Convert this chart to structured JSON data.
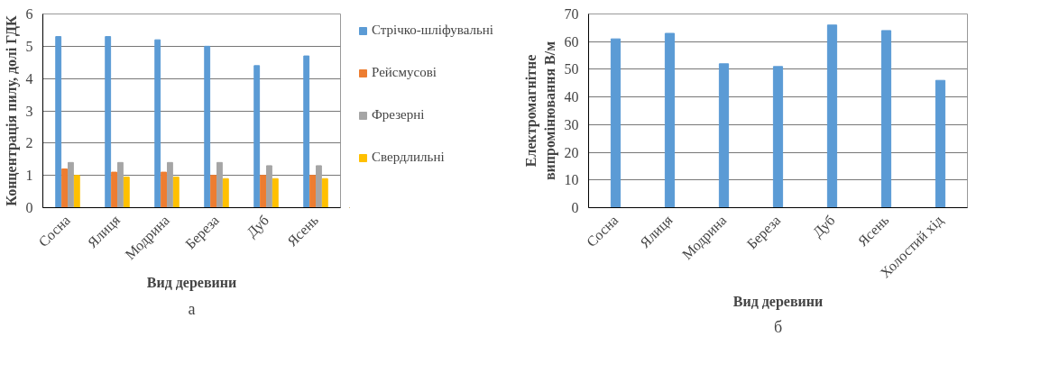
{
  "chart_data": [
    {
      "type": "bar",
      "xlabel": "Вид деревини",
      "ylabel": "Концентрація пилу, долі ГДК",
      "categories": [
        "Сосна",
        "Ялиця",
        "Модрина",
        "Береза",
        "Дуб",
        "Ясень"
      ],
      "series": [
        {
          "name": "Стрічко-шліфувальні",
          "color": "#5b9bd5",
          "values": [
            5.3,
            5.3,
            5.2,
            5.0,
            4.4,
            4.7
          ]
        },
        {
          "name": "Рейсмусові",
          "color": "#ed7d31",
          "values": [
            1.2,
            1.1,
            1.1,
            1.0,
            1.0,
            1.0
          ]
        },
        {
          "name": "Фрезерні",
          "color": "#a5a5a5",
          "values": [
            1.4,
            1.4,
            1.4,
            1.4,
            1.3,
            1.3
          ]
        },
        {
          "name": "Свердлильні",
          "color": "#ffc000",
          "values": [
            1.0,
            0.95,
            0.95,
            0.9,
            0.9,
            0.9
          ]
        }
      ],
      "ylim": [
        0,
        6
      ],
      "yticks": [
        0,
        1,
        2,
        3,
        4,
        5,
        6
      ],
      "grid": "y",
      "legend": "right",
      "annotations": [
        "а"
      ]
    },
    {
      "type": "bar",
      "xlabel": "Вид деревини",
      "ylabel": "Електромагнітне випромінювання В/м",
      "categories": [
        "Сосна",
        "Ялиця",
        "Модрина",
        "Береза",
        "Дуб",
        "Ясень",
        "Холостий хід"
      ],
      "series": [
        {
          "color": "#5b9bd5",
          "values": [
            61,
            63,
            52,
            51,
            66,
            64,
            46
          ]
        }
      ],
      "ylim": [
        0,
        70
      ],
      "yticks": [
        0,
        10,
        20,
        30,
        40,
        50,
        60,
        70
      ],
      "grid": "y",
      "annotations": [
        "б"
      ]
    }
  ]
}
